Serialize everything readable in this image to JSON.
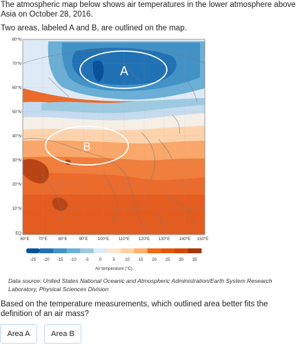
{
  "intro_text": "The atmospheric map below shows air temperatures in the lower atmosphere above Asia on October 28, 2016.",
  "intro_text_2": "Two areas, labeled A and B, are outlined on the map.",
  "map": {
    "lat_labels": [
      "80°N",
      "70°N",
      "60°N",
      "50°N",
      "40°N",
      "30°N",
      "20°N",
      "10°N",
      "EQ"
    ],
    "lon_labels": [
      "60°E",
      "70°E",
      "80°E",
      "90°E",
      "100°E",
      "110°E",
      "120°E",
      "130°E",
      "140°E",
      "150°E"
    ],
    "area_a_label": "A",
    "area_b_label": "B"
  },
  "legend": {
    "ticks": [
      "-25",
      "-20",
      "-15",
      "-10",
      "-5",
      "0",
      "5",
      "10",
      "15",
      "20",
      "25",
      "30",
      "35"
    ],
    "colors": [
      "#08519c",
      "#2171b5",
      "#4292c6",
      "#6baed6",
      "#9ecae1",
      "#deebf7",
      "#fee6ce",
      "#fdd0a2",
      "#fdae6b",
      "#f16913",
      "#e6550d",
      "#d94801",
      "#a63603"
    ],
    "title": "Air temperature (°C)"
  },
  "source_text": "Data source: United States National Oceanic and Atmospheric Administration/Earth System Research Laboratory, Physical Sciences Division",
  "question_text": "Based on the temperature measurements, which outlined area better fits the definition of an air mass?",
  "answers": {
    "a": "Area A",
    "b": "Area B"
  }
}
